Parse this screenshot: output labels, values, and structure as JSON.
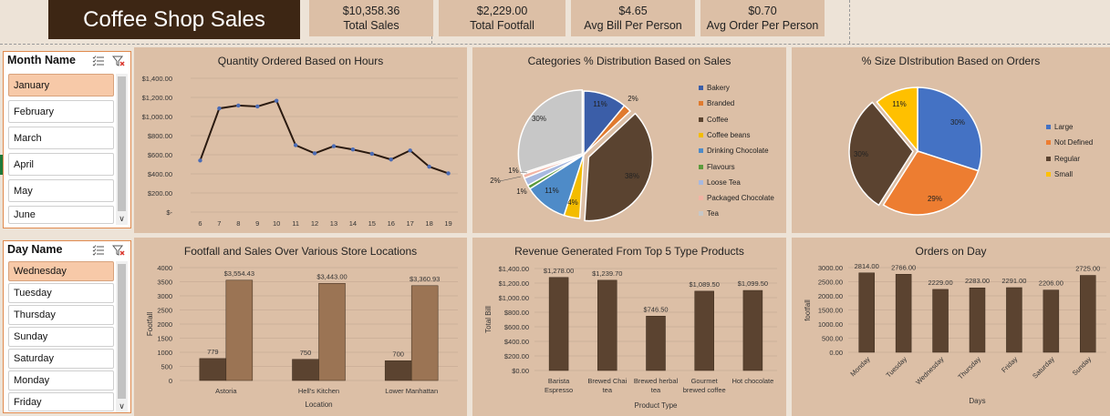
{
  "title": "Coffee Shop Sales",
  "kpis": [
    {
      "value": "$10,358.36",
      "label": "Total Sales"
    },
    {
      "value": "$2,229.00",
      "label": "Total Footfall"
    },
    {
      "value": "$4.65",
      "label": "Avg Bill Per Person"
    },
    {
      "value": "$0.70",
      "label": "Avg Order Per Person"
    }
  ],
  "month_slicer": {
    "title": "Month Name",
    "items": [
      "January",
      "February",
      "March",
      "April",
      "May",
      "June"
    ],
    "selected": "January"
  },
  "day_slicer": {
    "title": "Day Name",
    "items": [
      "Wednesday",
      "Tuesday",
      "Thursday",
      "Sunday",
      "Saturday",
      "Monday",
      "Friday"
    ],
    "selected": "Wednesday"
  },
  "colors": {
    "dark_brown": "#5b4330",
    "light_brown": "#9b7454",
    "panel_bg": "#dcbfa6",
    "line": "#2a1a10",
    "marker": "#4a6bb5"
  },
  "chart_data": [
    {
      "id": "hours",
      "type": "line",
      "title": "Quantity Ordered Based on Hours",
      "x": [
        "6",
        "7",
        "8",
        "9",
        "10",
        "11",
        "12",
        "13",
        "14",
        "15",
        "16",
        "17",
        "18",
        "19"
      ],
      "values": [
        540,
        1085,
        1115,
        1105,
        1165,
        700,
        615,
        690,
        655,
        610,
        550,
        645,
        475,
        405
      ],
      "ylim": [
        0,
        1400
      ],
      "yticks": [
        "$-",
        "$200.00",
        "$400.00",
        "$600.00",
        "$800.00",
        "$1,000.00",
        "$1,200.00",
        "$1,400.00"
      ]
    },
    {
      "id": "categories",
      "type": "pie",
      "title": "Categories % Distribution Based on Sales",
      "labels": [
        "Bakery",
        "Branded",
        "Coffee",
        "Coffee beans",
        "Drinking Chocolate",
        "Flavours",
        "Loose Tea",
        "Packaged Chocolate",
        "Tea"
      ],
      "values": [
        11,
        2,
        38,
        4,
        11,
        1,
        2,
        1,
        30
      ],
      "data_labels": [
        "11%",
        "2%",
        "38%",
        "4%",
        "11%",
        "1%",
        "2%",
        "1%",
        "30%"
      ],
      "colors": [
        "#3b5ea8",
        "#e07a2e",
        "#5a4330",
        "#f3bc00",
        "#4e8bc8",
        "#5b9a3c",
        "#a7b9e0",
        "#f2b3a3",
        "#c7c7c7"
      ]
    },
    {
      "id": "sizes",
      "type": "pie",
      "title": "% Size DIstribution Based on Orders",
      "labels": [
        "Large",
        "Not Defined",
        "Regular",
        "Small"
      ],
      "values": [
        30,
        29,
        30,
        11
      ],
      "data_labels": [
        "30%",
        "29%",
        "30%",
        "11%"
      ],
      "colors": [
        "#4472c4",
        "#ed7d31",
        "#5b4330",
        "#ffc000"
      ]
    },
    {
      "id": "locations",
      "type": "bar",
      "title": "Footfall and Sales Over Various Store Locations",
      "categories": [
        "Astoria",
        "Hell's Kitchen",
        "Lower Manhattan"
      ],
      "series": [
        {
          "values": [
            779,
            750,
            700
          ],
          "labels": [
            "779",
            "750",
            "700"
          ]
        },
        {
          "values": [
            3554.43,
            3443.0,
            3360.93
          ],
          "labels": [
            "$3,554.43",
            "$3,443.00",
            "$3,360.93"
          ]
        }
      ],
      "xlabel": "Location",
      "ylabel": "Footfall",
      "ylim": [
        0,
        4000
      ],
      "yticks": [
        "0",
        "500",
        "1000",
        "1500",
        "2000",
        "2500",
        "3000",
        "3500",
        "4000"
      ]
    },
    {
      "id": "products",
      "type": "bar",
      "title": "Revenue Generated From Top 5 Type Products",
      "categories": [
        [
          "Barista",
          "Espresso"
        ],
        [
          "Brewed Chai",
          "tea"
        ],
        [
          "Brewed herbal",
          "tea"
        ],
        [
          "Gourmet",
          "brewed coffee"
        ],
        [
          "Hot chocolate"
        ]
      ],
      "values": [
        1278.0,
        1239.7,
        746.5,
        1089.5,
        1099.5
      ],
      "data_labels": [
        "$1,278.00",
        "$1,239.70",
        "$746.50",
        "$1,089.50",
        "$1,099.50"
      ],
      "xlabel": "Product Type",
      "ylabel": "Total Bill",
      "ylim": [
        0,
        1400
      ],
      "yticks": [
        "$0.00",
        "$200.00",
        "$400.00",
        "$600.00",
        "$800.00",
        "$1,000.00",
        "$1,200.00",
        "$1,400.00"
      ]
    },
    {
      "id": "days",
      "type": "bar",
      "title": "Orders on Day",
      "categories": [
        "Monday",
        "Tuesday",
        "Wednesday",
        "Thursday",
        "Friday",
        "Saturday",
        "Sunday"
      ],
      "values": [
        2814,
        2766,
        2229,
        2283,
        2291,
        2206,
        2725
      ],
      "data_labels": [
        "2814.00",
        "2766.00",
        "2229.00",
        "2283.00",
        "2291.00",
        "2206.00",
        "2725.00"
      ],
      "xlabel": "Days",
      "ylabel": "footfall",
      "ylim": [
        0,
        3000
      ],
      "yticks": [
        "0.00",
        "500.00",
        "1000.00",
        "1500.00",
        "2000.00",
        "2500.00",
        "3000.00"
      ]
    }
  ]
}
